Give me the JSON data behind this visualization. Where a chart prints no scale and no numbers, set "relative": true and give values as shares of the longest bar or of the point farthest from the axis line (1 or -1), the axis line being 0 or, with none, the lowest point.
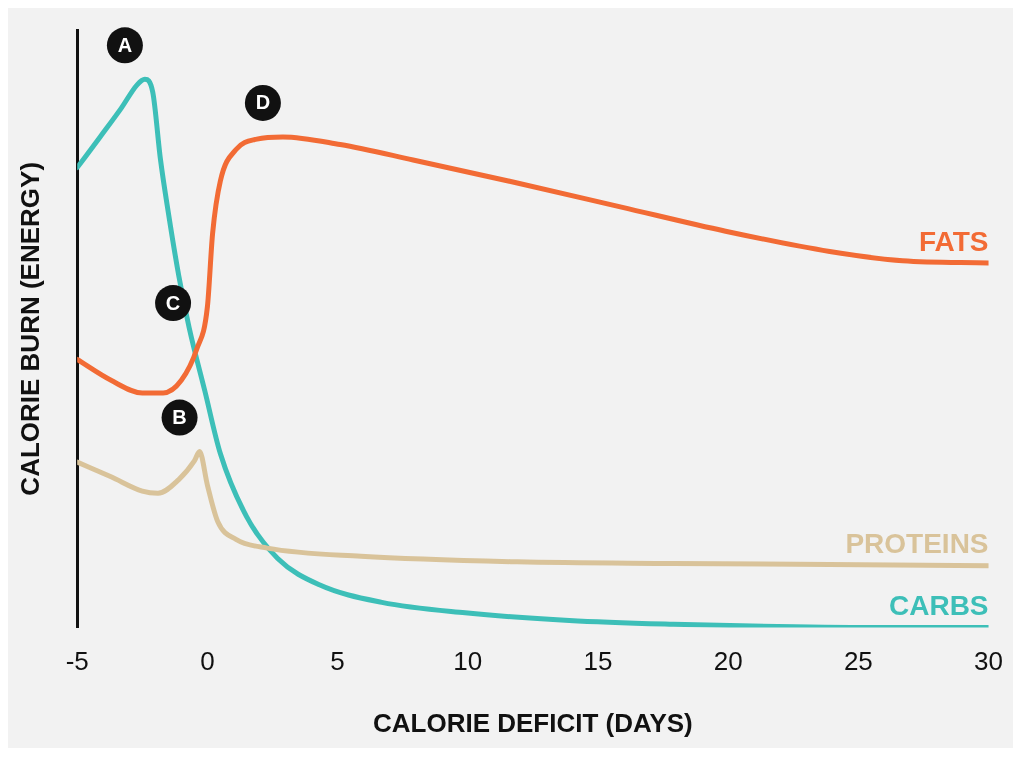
{
  "chart_data": {
    "type": "line",
    "relative": true,
    "xlabel": "CALORIE DEFICIT (DAYS)",
    "ylabel": "CALORIE BURN (ENERGY)",
    "xlim": [
      -5,
      30
    ],
    "xticks": [
      -5,
      0,
      5,
      10,
      15,
      20,
      25,
      30
    ],
    "grid": false,
    "legend": false,
    "marker": "none",
    "line_style": "solid",
    "series": [
      {
        "name": "FATS",
        "color": "#f26b35",
        "x": [
          -5,
          -3.7,
          -2.5,
          -1.7,
          -1,
          -0.4,
          0,
          0.2,
          0.5,
          1.1,
          1.9,
          2.9,
          5.1,
          7.9,
          11.9,
          15.9,
          19.9,
          23.9,
          26.7,
          30
        ],
        "values": [
          0.489,
          0.451,
          0.428,
          0.428,
          0.451,
          0.509,
          0.585,
          0.719,
          0.815,
          0.872,
          0.891,
          0.895,
          0.881,
          0.853,
          0.811,
          0.767,
          0.723,
          0.686,
          0.669,
          0.665
        ]
      },
      {
        "name": "PROTEINS",
        "color": "#d9c39a",
        "x": [
          -5,
          -3.7,
          -2.5,
          -1.9,
          -1.1,
          -0.5,
          -0.3,
          0,
          0.4,
          1.1,
          2.3,
          5.9,
          11.9,
          17.9,
          23.9,
          30
        ],
        "values": [
          0.302,
          0.275,
          0.249,
          0.245,
          0.27,
          0.304,
          0.321,
          0.26,
          0.193,
          0.161,
          0.145,
          0.13,
          0.12,
          0.117,
          0.115,
          0.113
        ]
      },
      {
        "name": "CARBS",
        "color": "#3dbfb8",
        "x": [
          -5,
          -4.12,
          -3.3,
          -2.7,
          -2.4,
          -2.1,
          -1.8,
          -1.5,
          -1.1,
          -0.7,
          -0.1,
          0.5,
          1.5,
          2.7,
          4.3,
          6.7,
          9.9,
          13.9,
          17.9,
          21.9,
          25.9,
          30
        ],
        "values": [
          0.839,
          0.895,
          0.948,
          0.99,
          1,
          0.977,
          0.853,
          0.757,
          0.642,
          0.547,
          0.432,
          0.317,
          0.203,
          0.126,
          0.078,
          0.046,
          0.027,
          0.013,
          0.006,
          0.002,
          0,
          0
        ]
      }
    ],
    "annotations": [
      {
        "text": "A",
        "x": -2.4,
        "y": 1
      },
      {
        "text": "B",
        "x": -0.3,
        "y": 0.321
      },
      {
        "text": "C",
        "x": -0.55,
        "y": 0.53
      },
      {
        "text": "D",
        "x": 2.9,
        "y": 0.895
      }
    ]
  }
}
